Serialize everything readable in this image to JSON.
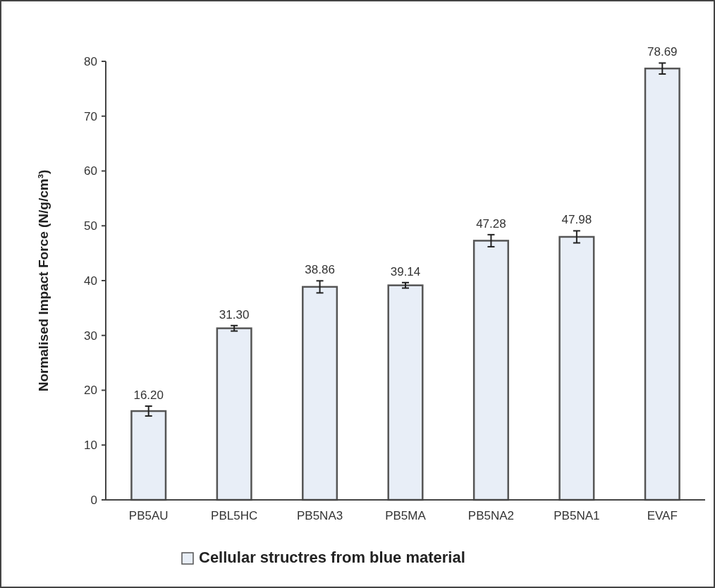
{
  "chart_data": {
    "type": "bar",
    "ylabel": "Normalised Impact Force  (N/g/cm³)",
    "categories": [
      "PB5AU",
      "PBL5HC",
      "PB5NA3",
      "PB5MA",
      "PB5NA2",
      "PB5NA1",
      "EVAF"
    ],
    "series": [
      {
        "name": "Cellular structres from blue material",
        "color": "#e8eef7",
        "values": [
          16.2,
          31.3,
          38.86,
          39.14,
          47.28,
          47.98,
          78.69
        ],
        "errors": [
          0.9,
          0.5,
          1.1,
          0.5,
          1.1,
          1.1,
          1.0
        ],
        "value_labels": [
          "16.20",
          "31.30",
          "38.86",
          "39.14",
          "47.28",
          "47.98",
          "78.69"
        ]
      }
    ],
    "ylim": [
      0,
      80
    ],
    "yticks": [
      0,
      10,
      20,
      30,
      40,
      50,
      60,
      70,
      80
    ],
    "grid": false,
    "legend": "bottom"
  }
}
